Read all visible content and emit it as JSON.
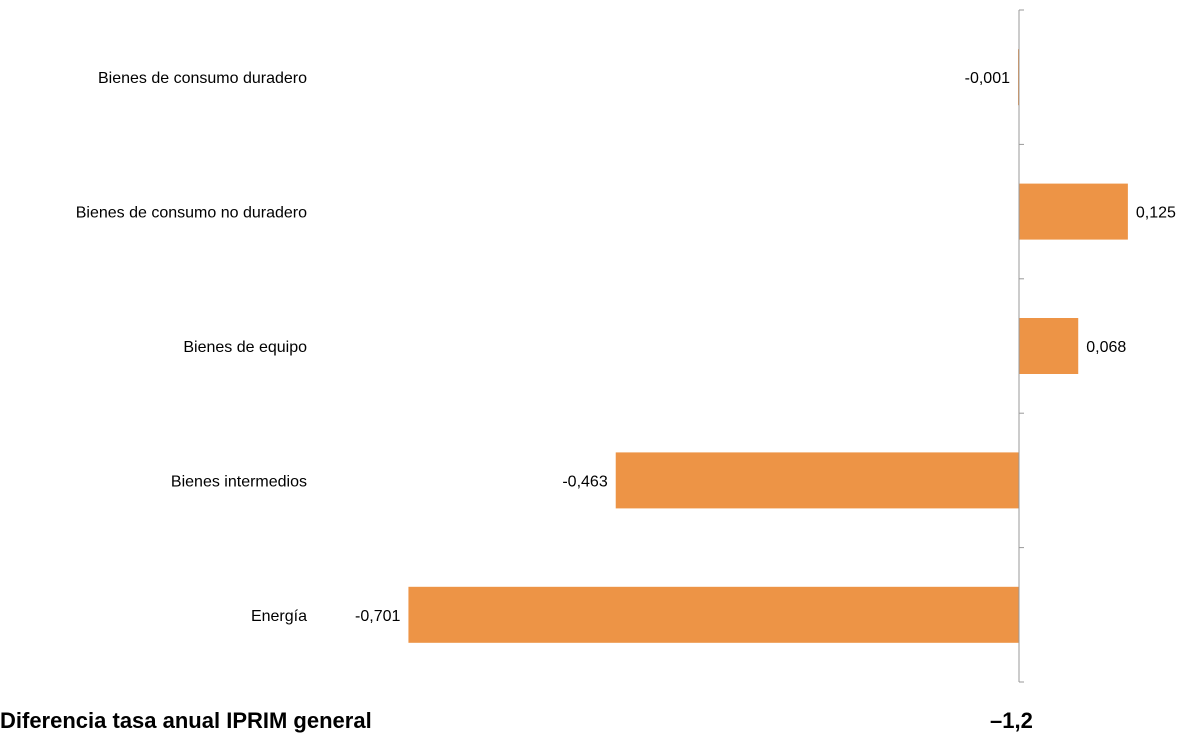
{
  "chart_data": {
    "type": "bar",
    "orientation": "horizontal",
    "categories": [
      "Bienes de consumo duradero",
      "Bienes de consumo no duradero",
      "Bienes de equipo",
      "Bienes intermedios",
      "Energía"
    ],
    "values": [
      -0.001,
      0.125,
      0.068,
      -0.463,
      -0.701
    ],
    "data_labels": [
      "-0,001",
      "0,125",
      "0,068",
      "-0,463",
      "-0,701"
    ],
    "bar_color": "#ED9446",
    "axis_color": "#999999",
    "grid": false,
    "legend": "none"
  },
  "footer": {
    "label": "Diferencia tasa anual IPRIM general",
    "value": "–1,2"
  }
}
